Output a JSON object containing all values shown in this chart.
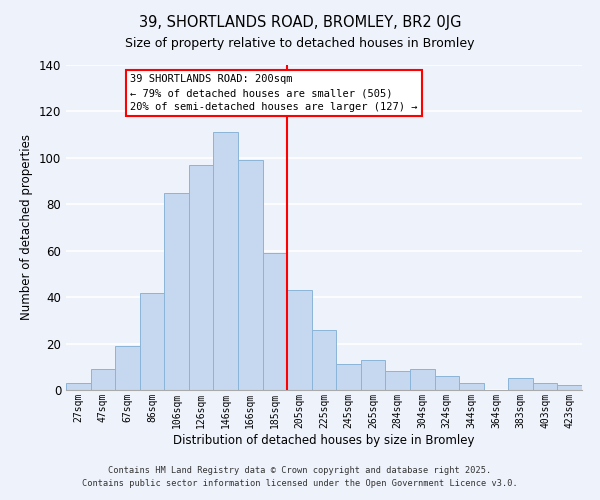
{
  "title": "39, SHORTLANDS ROAD, BROMLEY, BR2 0JG",
  "subtitle": "Size of property relative to detached houses in Bromley",
  "xlabel": "Distribution of detached houses by size in Bromley",
  "ylabel": "Number of detached properties",
  "bar_color": "#c5d8f0",
  "bar_edge_color": "#8ab4d8",
  "bg_color": "#eef2fb",
  "grid_color": "#ffffff",
  "categories": [
    "27sqm",
    "47sqm",
    "67sqm",
    "86sqm",
    "106sqm",
    "126sqm",
    "146sqm",
    "166sqm",
    "185sqm",
    "205sqm",
    "225sqm",
    "245sqm",
    "265sqm",
    "284sqm",
    "304sqm",
    "324sqm",
    "344sqm",
    "364sqm",
    "383sqm",
    "403sqm",
    "423sqm"
  ],
  "values": [
    3,
    9,
    19,
    42,
    85,
    97,
    111,
    99,
    59,
    43,
    26,
    11,
    13,
    8,
    9,
    6,
    3,
    0,
    5,
    3,
    2
  ],
  "vline_x": 8.5,
  "annotation_title": "39 SHORTLANDS ROAD: 200sqm",
  "annotation_line1": "← 79% of detached houses are smaller (505)",
  "annotation_line2": "20% of semi-detached houses are larger (127) →",
  "ylim": [
    0,
    140
  ],
  "yticks": [
    0,
    20,
    40,
    60,
    80,
    100,
    120,
    140
  ],
  "footnote1": "Contains HM Land Registry data © Crown copyright and database right 2025.",
  "footnote2": "Contains public sector information licensed under the Open Government Licence v3.0."
}
